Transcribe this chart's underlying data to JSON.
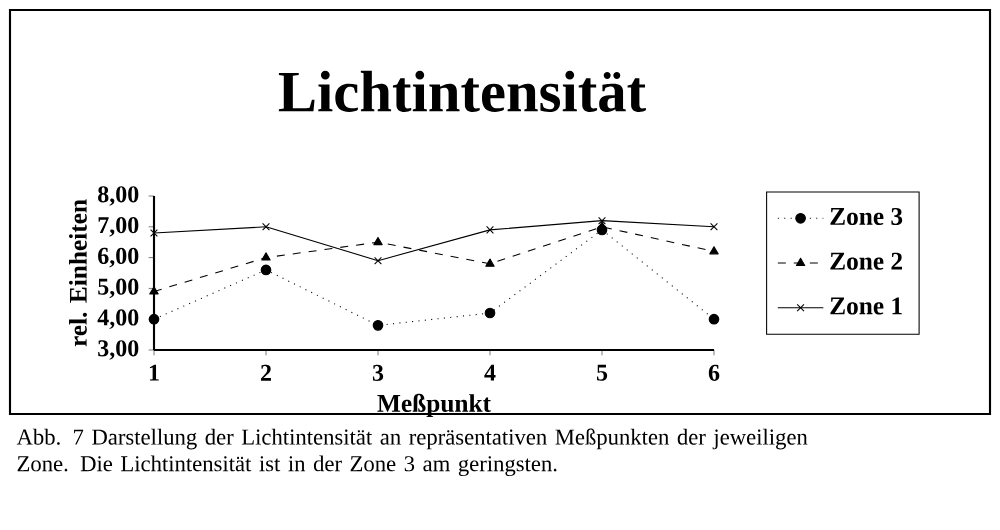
{
  "chart_data": {
    "type": "line",
    "title": "Lichtintensität",
    "xlabel": "Meßpunkt",
    "ylabel": "rel. Einheiten",
    "x": [
      1,
      2,
      3,
      4,
      5,
      6
    ],
    "series": [
      {
        "name": "Zone 3",
        "color": "#000000",
        "marker": "circle",
        "line_style": "dotted",
        "values": [
          4.0,
          5.6,
          3.8,
          4.2,
          6.9,
          4.0
        ]
      },
      {
        "name": "Zone 2",
        "color": "#000000",
        "marker": "triangle",
        "line_style": "dashed",
        "values": [
          4.9,
          6.0,
          6.5,
          5.8,
          7.0,
          6.2
        ]
      },
      {
        "name": "Zone 1",
        "color": "#000000",
        "marker": "cross",
        "line_style": "solid",
        "values": [
          6.8,
          7.0,
          5.9,
          6.9,
          7.2,
          7.0
        ]
      }
    ],
    "xlim": [
      1,
      6
    ],
    "xticks": [
      1,
      2,
      3,
      4,
      5,
      6
    ],
    "ylim": [
      3,
      8
    ],
    "yticks": [
      {
        "value": 3,
        "label": "3,00"
      },
      {
        "value": 4,
        "label": "4,00"
      },
      {
        "value": 5,
        "label": "5,00"
      },
      {
        "value": 6,
        "label": "6,00"
      },
      {
        "value": 7,
        "label": "7,00"
      },
      {
        "value": 8,
        "label": "8,00"
      }
    ],
    "legend": "right",
    "grid": false,
    "annotations": [
      "Abb. 7  Darstellung der Lichtintensität an repräsentativen Meßpunkten der jeweiligen Zone. Die Lichtintensität ist in der Zone 3 am geringsten."
    ]
  }
}
